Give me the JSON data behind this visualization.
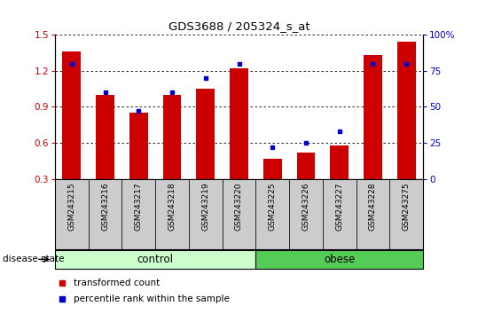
{
  "title": "GDS3688 / 205324_s_at",
  "samples": [
    "GSM243215",
    "GSM243216",
    "GSM243217",
    "GSM243218",
    "GSM243219",
    "GSM243220",
    "GSM243225",
    "GSM243226",
    "GSM243227",
    "GSM243228",
    "GSM243275"
  ],
  "transformed_count": [
    1.36,
    1.0,
    0.85,
    1.0,
    1.05,
    1.22,
    0.47,
    0.52,
    0.58,
    1.33,
    1.44
  ],
  "percentile_rank": [
    80,
    60,
    47,
    60,
    70,
    80,
    22,
    25,
    33,
    80,
    80
  ],
  "ylim_left": [
    0.3,
    1.5
  ],
  "ylim_right": [
    0,
    100
  ],
  "yticks_left": [
    0.3,
    0.6,
    0.9,
    1.2,
    1.5
  ],
  "yticks_right": [
    0,
    25,
    50,
    75,
    100
  ],
  "bar_color": "#cc0000",
  "dot_color": "#0000cc",
  "control_color": "#ccffcc",
  "obese_color": "#55cc55",
  "xlabel_bg": "#cccccc",
  "control_samples": 6,
  "obese_samples": 5,
  "group_label_control": "control",
  "group_label_obese": "obese",
  "disease_state_label": "disease state",
  "legend_bar_label": "transformed count",
  "legend_dot_label": "percentile rank within the sample",
  "bar_width": 0.55,
  "baseline": 0.3
}
